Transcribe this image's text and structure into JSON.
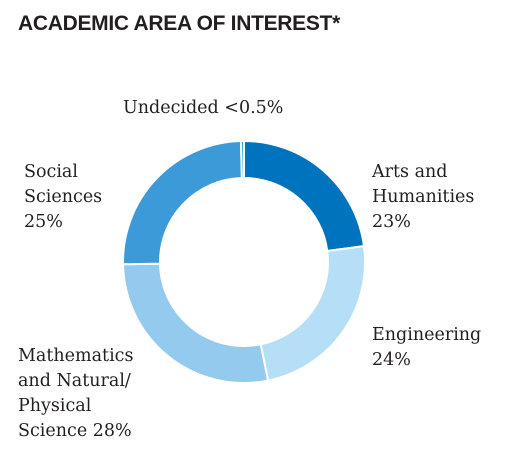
{
  "page": {
    "title": "ACADEMIC AREA OF INTEREST*"
  },
  "chart_data": {
    "type": "pie",
    "variant": "donut",
    "title": "ACADEMIC AREA OF INTEREST*",
    "slices": [
      {
        "key": "arts",
        "lines": [
          "Arts and",
          "Humanities",
          "23%"
        ],
        "value": 23,
        "color": "#0073bf"
      },
      {
        "key": "eng",
        "lines": [
          "Engineering",
          "24%"
        ],
        "value": 24,
        "color": "#b5dff7"
      },
      {
        "key": "math",
        "lines": [
          "Mathematics",
          "and Natural/",
          "Physical",
          "Science 28%"
        ],
        "value": 28,
        "color": "#94caee"
      },
      {
        "key": "social",
        "lines": [
          "Social",
          "Sciences",
          "25%"
        ],
        "value": 25,
        "color": "#3d9ad9"
      },
      {
        "key": "undecided",
        "lines": [
          "Undecided <0.5%"
        ],
        "value": 0.4,
        "color": "#1d9fd8"
      }
    ]
  }
}
